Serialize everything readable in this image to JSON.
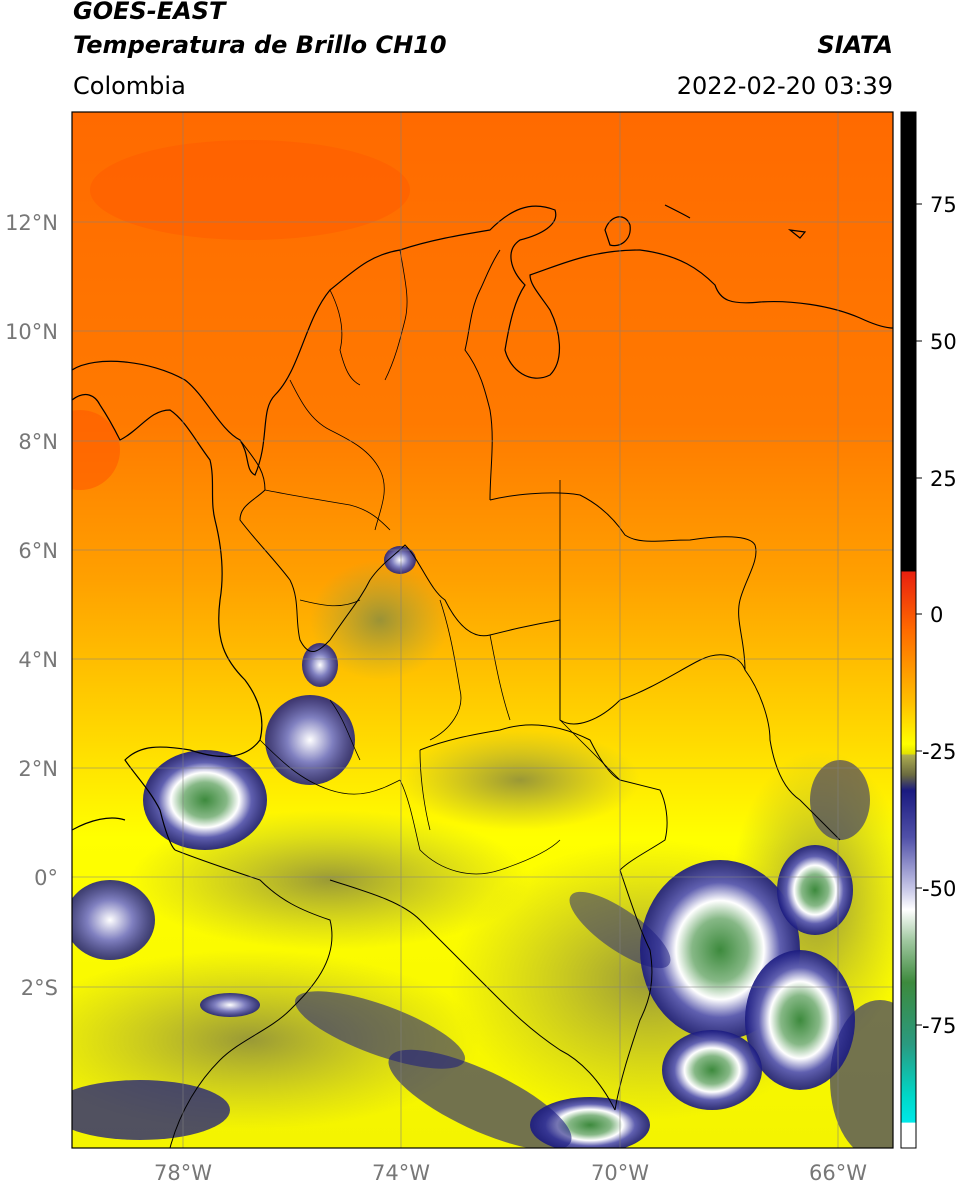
{
  "header": {
    "title_line1": "GOES-EAST",
    "title_line2": "Temperatura de Brillo CH10",
    "region": "Colombia",
    "agency": "SIATA",
    "timestamp": "2022-02-20 03:39"
  },
  "map": {
    "lat_ticks": [
      "12°N",
      "10°N",
      "8°N",
      "6°N",
      "4°N",
      "2°N",
      "0°",
      "2°S"
    ],
    "lon_ticks": [
      "78°W",
      "74°W",
      "70°W",
      "66°W"
    ],
    "grid": true
  },
  "colorbar": {
    "ticks": [
      "75",
      "50",
      "25",
      "0",
      "-25",
      "-50",
      "-75"
    ],
    "colors": {
      "black": "#000000",
      "red": "#e8200f",
      "orange": "#ff7a00",
      "yellow": "#ffff00",
      "olive": "#8f8f3c",
      "navy": "#1a1a80",
      "white": "#ffffff",
      "green": "#3d8a3d",
      "cyan": "#00e0e0"
    }
  }
}
